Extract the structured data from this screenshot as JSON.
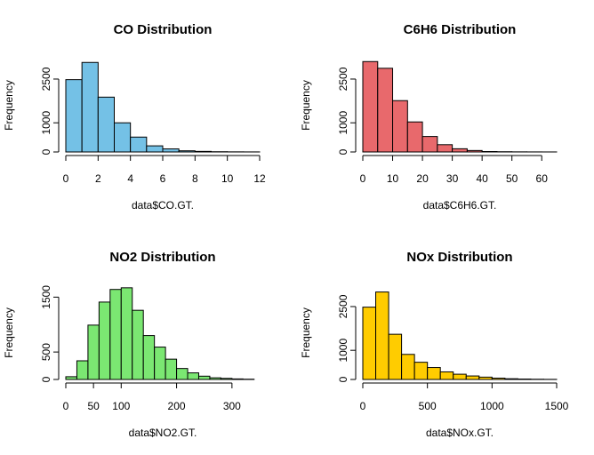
{
  "chart_data": [
    {
      "id": "co",
      "type": "bar",
      "title": "CO Distribution",
      "xlabel": "data$CO.GT.",
      "ylabel": "Frequency",
      "fill": "#74c1e6",
      "xlim": [
        0,
        12
      ],
      "ylim": [
        0,
        3200
      ],
      "x_ticks": [
        0,
        2,
        4,
        6,
        8,
        10,
        12
      ],
      "y_ticks": [
        0,
        1000,
        2500
      ],
      "bin_edges": [
        0,
        1,
        2,
        3,
        4,
        5,
        6,
        7,
        8,
        9,
        10,
        11,
        12
      ],
      "values": [
        2480,
        3070,
        1880,
        1000,
        510,
        210,
        105,
        40,
        20,
        8,
        4,
        2
      ]
    },
    {
      "id": "c6h6",
      "type": "bar",
      "title": "C6H6 Distribution",
      "xlabel": "data$C6H6.GT.",
      "ylabel": "Frequency",
      "fill": "#e8696c",
      "xlim": [
        0,
        65
      ],
      "ylim": [
        0,
        3200
      ],
      "x_ticks": [
        0,
        10,
        20,
        30,
        40,
        50,
        60
      ],
      "y_ticks": [
        0,
        1000,
        2500
      ],
      "bin_edges": [
        0,
        5,
        10,
        15,
        20,
        25,
        30,
        35,
        40,
        45,
        50,
        55,
        60,
        65
      ],
      "values": [
        3100,
        2870,
        1760,
        1030,
        530,
        250,
        110,
        50,
        15,
        8,
        4,
        2,
        1
      ]
    },
    {
      "id": "no2",
      "type": "bar",
      "title": "NO2 Distribution",
      "xlabel": "data$NO2.GT.",
      "ylabel": "Frequency",
      "fill": "#7be772",
      "xlim": [
        0,
        350
      ],
      "ylim": [
        0,
        1700
      ],
      "x_ticks": [
        0,
        50,
        100,
        200,
        300
      ],
      "y_ticks": [
        0,
        500,
        1500
      ],
      "bin_edges": [
        0,
        20,
        40,
        60,
        80,
        100,
        120,
        140,
        160,
        180,
        200,
        220,
        240,
        260,
        280,
        300,
        320,
        340
      ],
      "values": [
        50,
        340,
        990,
        1410,
        1640,
        1670,
        1260,
        800,
        590,
        370,
        200,
        120,
        60,
        30,
        20,
        10,
        5
      ]
    },
    {
      "id": "nox",
      "type": "bar",
      "title": "NOx Distribution",
      "xlabel": "data$NOx.GT.",
      "ylabel": "Frequency",
      "fill": "#ffcc00",
      "xlim": [
        0,
        1500
      ],
      "ylim": [
        0,
        3200
      ],
      "x_ticks": [
        0,
        500,
        1000,
        1500
      ],
      "y_ticks": [
        0,
        1000,
        2500
      ],
      "bin_edges": [
        0,
        100,
        200,
        300,
        400,
        500,
        600,
        700,
        800,
        900,
        1000,
        1100,
        1200,
        1300,
        1400,
        1500
      ],
      "values": [
        2480,
        3000,
        1550,
        860,
        590,
        410,
        260,
        180,
        120,
        80,
        45,
        25,
        15,
        8,
        4
      ]
    }
  ]
}
